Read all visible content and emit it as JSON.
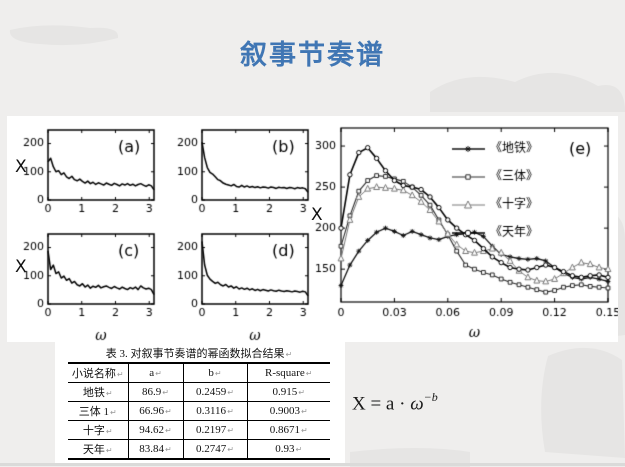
{
  "slide": {
    "title": "叙事节奏谱",
    "title_color": "#4076b4",
    "background_color": "#efeeed",
    "line_color": "#000000"
  },
  "chart_data": [
    {
      "id": "a",
      "type": "line",
      "title": "(a)",
      "xlabel": "",
      "ylabel": "X",
      "xlim": [
        0,
        3.1416
      ],
      "ylim": [
        0,
        248
      ],
      "xticks": [
        0,
        1,
        2,
        3
      ],
      "yticks": [
        0,
        100,
        200
      ],
      "grid": false,
      "values": [
        135,
        148,
        118,
        100,
        104,
        90,
        96,
        82,
        76,
        84,
        72,
        68,
        74,
        66,
        60,
        67,
        58,
        63,
        55,
        61,
        57,
        53,
        60,
        56,
        52,
        59,
        55,
        50,
        57,
        53,
        58,
        52,
        56,
        50,
        55,
        58,
        53,
        48,
        54,
        50,
        36
      ]
    },
    {
      "id": "b",
      "type": "line",
      "title": "(b)",
      "xlabel": "",
      "ylabel": "",
      "xlim": [
        0,
        3.1416
      ],
      "ylim": [
        0,
        248
      ],
      "xticks": [
        0,
        1,
        2,
        3
      ],
      "yticks": [
        0,
        100,
        200
      ],
      "grid": false,
      "values": [
        205,
        150,
        115,
        98,
        92,
        82,
        72,
        68,
        60,
        56,
        53,
        50,
        55,
        48,
        46,
        52,
        46,
        50,
        45,
        48,
        44,
        47,
        43,
        46,
        45,
        42,
        46,
        44,
        41,
        45,
        43,
        44,
        41,
        44,
        43,
        40,
        44,
        42,
        43,
        40,
        27
      ]
    },
    {
      "id": "c",
      "type": "line",
      "title": "(c)",
      "xlabel": "ω",
      "ylabel": "X",
      "xlim": [
        0,
        3.1416
      ],
      "ylim": [
        0,
        248
      ],
      "xticks": [
        0,
        1,
        2,
        3
      ],
      "yticks": [
        0,
        100,
        200
      ],
      "grid": false,
      "values": [
        188,
        122,
        138,
        108,
        114,
        92,
        99,
        84,
        90,
        74,
        80,
        68,
        64,
        72,
        60,
        67,
        56,
        63,
        59,
        66,
        57,
        61,
        64,
        59,
        55,
        62,
        57,
        53,
        60,
        55,
        51,
        58,
        54,
        60,
        51,
        64,
        57,
        53,
        56,
        51,
        33
      ]
    },
    {
      "id": "d",
      "type": "line",
      "title": "(d)",
      "xlabel": "ω",
      "ylabel": "",
      "xlim": [
        0,
        3.1416
      ],
      "ylim": [
        0,
        248
      ],
      "xticks": [
        0,
        1,
        2,
        3
      ],
      "yticks": [
        0,
        100,
        200
      ],
      "grid": false,
      "values": [
        222,
        138,
        102,
        88,
        80,
        73,
        77,
        68,
        64,
        69,
        60,
        64,
        56,
        61,
        53,
        57,
        52,
        56,
        50,
        54,
        48,
        52,
        47,
        51,
        49,
        46,
        50,
        47,
        45,
        49,
        46,
        44,
        47,
        45,
        43,
        46,
        44,
        42,
        45,
        43,
        29
      ]
    },
    {
      "id": "e",
      "type": "line",
      "title": "(e)",
      "xlabel": "ω",
      "ylabel": "X",
      "xlim": [
        0,
        0.15
      ],
      "ylim": [
        110,
        322
      ],
      "xticks": [
        0,
        0.03,
        0.06,
        0.09,
        0.12,
        0.15
      ],
      "yticks": [
        150,
        200,
        250,
        300
      ],
      "x_step": 0.005,
      "grid": false,
      "legend_position": "upper-right",
      "series": [
        {
          "name": "《地铁》",
          "marker": "asterisk",
          "color": "#111111",
          "width": 1.3,
          "values": [
            130,
            155,
            172,
            185,
            195,
            200,
            196,
            191,
            196,
            192,
            188,
            186,
            190,
            192,
            193,
            195,
            190,
            178,
            168,
            165,
            163,
            162,
            163,
            160,
            152,
            145,
            140,
            138,
            140,
            138,
            135
          ]
        },
        {
          "name": "《三体》",
          "marker": "square",
          "color": "#2a2a2a",
          "width": 1.1,
          "values": [
            178,
            215,
            245,
            258,
            264,
            263,
            260,
            257,
            250,
            240,
            228,
            210,
            192,
            172,
            155,
            150,
            146,
            143,
            138,
            134,
            131,
            128,
            125,
            122,
            124,
            128,
            130,
            131,
            129,
            128,
            127
          ]
        },
        {
          "name": "《十字》",
          "marker": "triangle",
          "color": "#777777",
          "width": 1.0,
          "values": [
            163,
            210,
            238,
            248,
            250,
            249,
            248,
            246,
            240,
            232,
            222,
            208,
            193,
            180,
            172,
            170,
            172,
            175,
            170,
            160,
            148,
            140,
            136,
            135,
            138,
            145,
            152,
            158,
            156,
            152,
            150
          ]
        },
        {
          "name": "《天年》",
          "marker": "circle",
          "color": "#000000",
          "width": 1.6,
          "values": [
            200,
            265,
            292,
            298,
            285,
            270,
            258,
            252,
            250,
            247,
            238,
            225,
            210,
            200,
            192,
            185,
            175,
            165,
            158,
            152,
            150,
            149,
            152,
            155,
            152,
            147,
            142,
            140,
            142,
            143,
            140
          ]
        }
      ]
    }
  ],
  "table": {
    "caption": "表 3. 对叙事节奏谱的幂函数拟合结果",
    "headers": [
      "小说名称",
      "a",
      "b",
      "R-square"
    ],
    "rows": [
      [
        "地铁",
        "86.9",
        "0.2459",
        "0.915"
      ],
      [
        "三体 1",
        "66.96",
        "0.3116",
        "0.9003"
      ],
      [
        "十字",
        "94.62",
        "0.2197",
        "0.8671"
      ],
      [
        "天年",
        "83.84",
        "0.2747",
        "0.93"
      ]
    ],
    "return_mark": "↵"
  },
  "formula": {
    "prefix": "X = a · ",
    "omega": "ω",
    "exponent": "−b"
  }
}
